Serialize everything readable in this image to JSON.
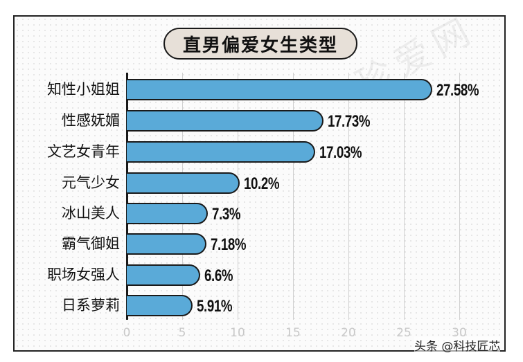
{
  "title": "直男偏爱女生类型",
  "watermark": "珍爱网",
  "credit": "头条 @科技匠芯",
  "colors": {
    "bar": "#5aaad8",
    "title_bg": "#e7e0d8",
    "axis_tick": "#c8c8c8"
  },
  "chart_data": {
    "type": "bar",
    "orientation": "horizontal",
    "title": "直男偏爱女生类型",
    "categories": [
      "知性小姐姐",
      "性感妩媚",
      "文艺女青年",
      "元气少女",
      "冰山美人",
      "霸气御姐",
      "职场女强人",
      "日系萝莉"
    ],
    "values": [
      27.58,
      17.73,
      17.03,
      10.2,
      7.3,
      7.18,
      6.6,
      5.91
    ],
    "labels": [
      "27.58%",
      "17.73%",
      "17.03%",
      "10.2%",
      "7.3%",
      "7.18%",
      "6.6%",
      "5.91%"
    ],
    "xlabel": "",
    "ylabel": "",
    "xlim": [
      0,
      30
    ],
    "xticks": [
      "0",
      "5",
      "10",
      "15",
      "20",
      "25",
      "30"
    ],
    "grid": true,
    "legend": null
  }
}
